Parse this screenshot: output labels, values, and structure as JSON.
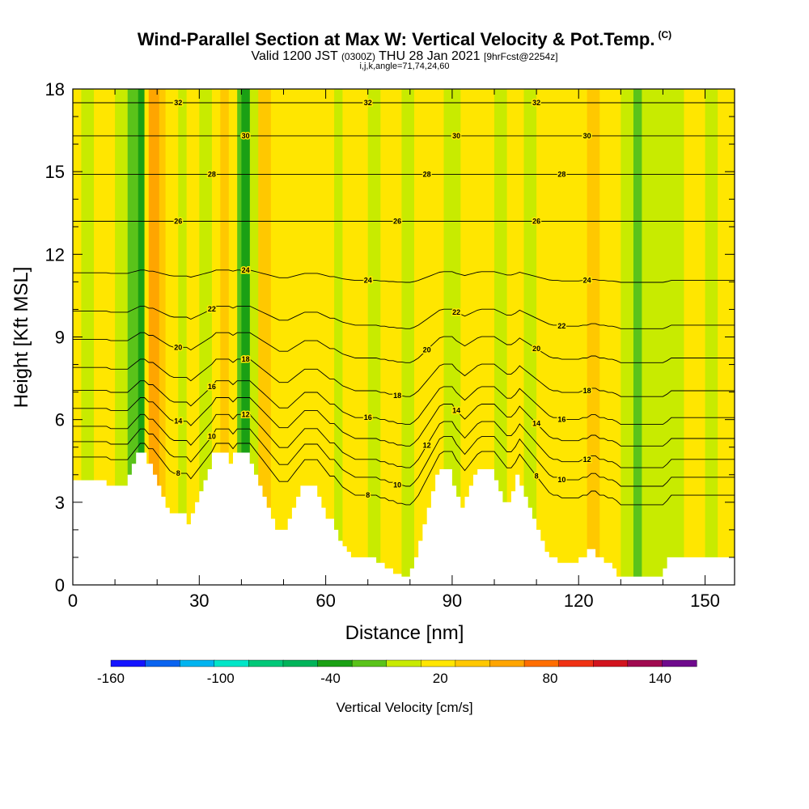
{
  "header": {
    "title": "Wind-Parallel Section at Max W: Vertical Velocity & Pot.Temp.",
    "title_mark": "(C)",
    "subtitle_valid": "Valid 1200 JST",
    "subtitle_utc": "(0300Z)",
    "subtitle_date": "THU 28 Jan 2021",
    "subtitle_fcst": "[9hrFcst@2254z]",
    "params": "i,j,k,angle=71,74,24,60"
  },
  "chart_data": {
    "type": "heatmap",
    "xlabel": "Distance [nm]",
    "ylabel": "Height [Kft MSL]",
    "xlim": [
      0,
      157
    ],
    "ylim": [
      0,
      18
    ],
    "x_ticks": [
      "0",
      "30",
      "60",
      "90",
      "120",
      "150"
    ],
    "x_tick_values": [
      0,
      30,
      60,
      90,
      120,
      150
    ],
    "y_ticks": [
      "0",
      "3",
      "6",
      "9",
      "12",
      "15",
      "18"
    ],
    "y_tick_values": [
      0,
      3,
      6,
      9,
      12,
      15,
      18
    ],
    "grid": false,
    "terrain_profile": [
      [
        0,
        3.8
      ],
      [
        8,
        3.8
      ],
      [
        8,
        3.6
      ],
      [
        13,
        3.6
      ],
      [
        13,
        4.0
      ],
      [
        14,
        4.0
      ],
      [
        14,
        4.4
      ],
      [
        15,
        4.4
      ],
      [
        15,
        4.8
      ],
      [
        17.5,
        4.8
      ],
      [
        17.5,
        4.4
      ],
      [
        19,
        4.4
      ],
      [
        19,
        4.0
      ],
      [
        20,
        4.0
      ],
      [
        20,
        3.6
      ],
      [
        21,
        3.6
      ],
      [
        21,
        3.2
      ],
      [
        22,
        3.2
      ],
      [
        22,
        2.8
      ],
      [
        23,
        2.8
      ],
      [
        23,
        2.6
      ],
      [
        27,
        2.6
      ],
      [
        27,
        2.2
      ],
      [
        28,
        2.2
      ],
      [
        28,
        2.6
      ],
      [
        29,
        2.6
      ],
      [
        29,
        3.0
      ],
      [
        30,
        3.0
      ],
      [
        30,
        3.4
      ],
      [
        31,
        3.4
      ],
      [
        31,
        3.8
      ],
      [
        32,
        3.8
      ],
      [
        32,
        4.2
      ],
      [
        33,
        4.2
      ],
      [
        33,
        4.8
      ],
      [
        37,
        4.8
      ],
      [
        37,
        4.4
      ],
      [
        38,
        4.4
      ],
      [
        38,
        4.8
      ],
      [
        42,
        4.8
      ],
      [
        42,
        4.4
      ],
      [
        43,
        4.4
      ],
      [
        43,
        4.0
      ],
      [
        44,
        4.0
      ],
      [
        44,
        3.6
      ],
      [
        45,
        3.6
      ],
      [
        45,
        3.2
      ],
      [
        46,
        3.2
      ],
      [
        46,
        2.8
      ],
      [
        47,
        2.8
      ],
      [
        47,
        2.4
      ],
      [
        48,
        2.4
      ],
      [
        48,
        2.0
      ],
      [
        51,
        2.0
      ],
      [
        51,
        2.4
      ],
      [
        52,
        2.4
      ],
      [
        52,
        2.8
      ],
      [
        53,
        2.8
      ],
      [
        53,
        3.2
      ],
      [
        54,
        3.2
      ],
      [
        54,
        3.6
      ],
      [
        58,
        3.6
      ],
      [
        58,
        3.2
      ],
      [
        59,
        3.2
      ],
      [
        59,
        2.8
      ],
      [
        60,
        2.8
      ],
      [
        60,
        2.4
      ],
      [
        62,
        2.4
      ],
      [
        62,
        2.0
      ],
      [
        63,
        2.0
      ],
      [
        63,
        1.6
      ],
      [
        64,
        1.6
      ],
      [
        64,
        1.4
      ],
      [
        65,
        1.4
      ],
      [
        65,
        1.2
      ],
      [
        66,
        1.2
      ],
      [
        66,
        1.0
      ],
      [
        72,
        1.0
      ],
      [
        72,
        0.8
      ],
      [
        74,
        0.8
      ],
      [
        74,
        0.6
      ],
      [
        76,
        0.6
      ],
      [
        76,
        0.4
      ],
      [
        78,
        0.4
      ],
      [
        78,
        0.3
      ],
      [
        80,
        0.3
      ],
      [
        80,
        0.6
      ],
      [
        81,
        0.6
      ],
      [
        81,
        1.0
      ],
      [
        82,
        1.0
      ],
      [
        82,
        1.6
      ],
      [
        83,
        1.6
      ],
      [
        83,
        2.2
      ],
      [
        84,
        2.2
      ],
      [
        84,
        2.8
      ],
      [
        85,
        2.8
      ],
      [
        85,
        3.4
      ],
      [
        86,
        3.4
      ],
      [
        86,
        4.0
      ],
      [
        87,
        4.0
      ],
      [
        87,
        4.2
      ],
      [
        90,
        4.2
      ],
      [
        90,
        3.6
      ],
      [
        91,
        3.6
      ],
      [
        91,
        3.2
      ],
      [
        92,
        3.2
      ],
      [
        92,
        2.8
      ],
      [
        93,
        2.8
      ],
      [
        93,
        3.2
      ],
      [
        94,
        3.2
      ],
      [
        94,
        3.6
      ],
      [
        95,
        3.6
      ],
      [
        95,
        4.0
      ],
      [
        96,
        4.0
      ],
      [
        96,
        4.2
      ],
      [
        100,
        4.2
      ],
      [
        100,
        3.8
      ],
      [
        101,
        3.8
      ],
      [
        101,
        3.4
      ],
      [
        102,
        3.4
      ],
      [
        102,
        3.0
      ],
      [
        104,
        3.0
      ],
      [
        104,
        3.4
      ],
      [
        105,
        3.4
      ],
      [
        105,
        4.0
      ],
      [
        106,
        4.0
      ],
      [
        106,
        3.6
      ],
      [
        107,
        3.6
      ],
      [
        107,
        3.2
      ],
      [
        108,
        3.2
      ],
      [
        108,
        2.8
      ],
      [
        109,
        2.8
      ],
      [
        109,
        2.4
      ],
      [
        110,
        2.4
      ],
      [
        110,
        2.0
      ],
      [
        111,
        2.0
      ],
      [
        111,
        1.6
      ],
      [
        112,
        1.6
      ],
      [
        112,
        1.2
      ],
      [
        113,
        1.2
      ],
      [
        113,
        1.0
      ],
      [
        115,
        1.0
      ],
      [
        115,
        0.8
      ],
      [
        120,
        0.8
      ],
      [
        120,
        1.0
      ],
      [
        122,
        1.0
      ],
      [
        122,
        1.3
      ],
      [
        124,
        1.3
      ],
      [
        124,
        1.0
      ],
      [
        126,
        1.0
      ],
      [
        126,
        0.8
      ],
      [
        128,
        0.8
      ],
      [
        128,
        0.6
      ],
      [
        129,
        0.6
      ],
      [
        129,
        0.3
      ],
      [
        140,
        0.3
      ],
      [
        140,
        0.6
      ],
      [
        141,
        0.6
      ],
      [
        141,
        1.0
      ],
      [
        157,
        1.0
      ]
    ],
    "velocity_bands": [
      {
        "x": [
          0,
          2
        ],
        "w": 20
      },
      {
        "x": [
          2,
          5
        ],
        "w": 0
      },
      {
        "x": [
          5,
          10
        ],
        "w": 20
      },
      {
        "x": [
          10,
          13
        ],
        "w": 0
      },
      {
        "x": [
          13,
          15.5
        ],
        "w": -20
      },
      {
        "x": [
          15.5,
          17
        ],
        "w": -40
      },
      {
        "x": [
          17,
          18
        ],
        "w": 20
      },
      {
        "x": [
          18,
          20.5
        ],
        "w": 60
      },
      {
        "x": [
          20.5,
          22
        ],
        "w": 40
      },
      {
        "x": [
          22,
          25
        ],
        "w": 20
      },
      {
        "x": [
          25,
          27
        ],
        "w": 0
      },
      {
        "x": [
          27,
          30
        ],
        "w": 20
      },
      {
        "x": [
          30,
          33
        ],
        "w": 0
      },
      {
        "x": [
          33,
          35
        ],
        "w": 20
      },
      {
        "x": [
          35,
          37
        ],
        "w": 40
      },
      {
        "x": [
          37,
          39
        ],
        "w": 20
      },
      {
        "x": [
          39,
          40
        ],
        "w": -20
      },
      {
        "x": [
          40,
          42
        ],
        "w": -40
      },
      {
        "x": [
          42,
          44
        ],
        "w": 0
      },
      {
        "x": [
          44,
          47
        ],
        "w": 40
      },
      {
        "x": [
          47,
          50
        ],
        "w": 20
      },
      {
        "x": [
          50,
          56
        ],
        "w": 20
      },
      {
        "x": [
          56,
          62
        ],
        "w": 20
      },
      {
        "x": [
          62,
          64
        ],
        "w": 0
      },
      {
        "x": [
          64,
          70
        ],
        "w": 20
      },
      {
        "x": [
          70,
          73
        ],
        "w": 0
      },
      {
        "x": [
          73,
          78
        ],
        "w": 20
      },
      {
        "x": [
          78,
          81
        ],
        "w": 0
      },
      {
        "x": [
          81,
          88
        ],
        "w": 20
      },
      {
        "x": [
          88,
          92
        ],
        "w": 0
      },
      {
        "x": [
          92,
          100
        ],
        "w": 20
      },
      {
        "x": [
          100,
          103
        ],
        "w": 0
      },
      {
        "x": [
          103,
          107
        ],
        "w": 20
      },
      {
        "x": [
          107,
          110
        ],
        "w": 0
      },
      {
        "x": [
          110,
          122
        ],
        "w": 20
      },
      {
        "x": [
          122,
          125
        ],
        "w": 40
      },
      {
        "x": [
          125,
          130
        ],
        "w": 20
      },
      {
        "x": [
          130,
          133
        ],
        "w": 0
      },
      {
        "x": [
          133,
          135
        ],
        "w": -20
      },
      {
        "x": [
          135,
          145
        ],
        "w": 0
      },
      {
        "x": [
          145,
          150
        ],
        "w": 20
      },
      {
        "x": [
          150,
          153
        ],
        "w": 0
      },
      {
        "x": [
          153,
          157
        ],
        "w": 20
      }
    ],
    "theta_contours": [
      {
        "value": 8,
        "base_height": 4.0
      },
      {
        "value": 10,
        "base_height": 4.6
      },
      {
        "value": 12,
        "base_height": 5.2
      },
      {
        "value": 14,
        "base_height": 5.9
      },
      {
        "value": 16,
        "base_height": 6.6
      },
      {
        "value": 18,
        "base_height": 7.5
      },
      {
        "value": 20,
        "base_height": 8.6
      },
      {
        "value": 22,
        "base_height": 9.7
      },
      {
        "value": 24,
        "base_height": 11.2
      },
      {
        "value": 26,
        "base_height": 13.2
      },
      {
        "value": 28,
        "base_height": 14.9
      },
      {
        "value": 30,
        "base_height": 16.3
      },
      {
        "value": 32,
        "base_height": 17.5
      }
    ],
    "colorbar": {
      "label": "Vertical Velocity [cm/s]",
      "tick_labels": [
        "-160",
        "-100",
        "-40",
        "20",
        "80",
        "140"
      ],
      "tick_values": [
        -160,
        -100,
        -40,
        20,
        80,
        140
      ],
      "bins": [
        -160,
        -140,
        -120,
        -100,
        -80,
        -60,
        -40,
        -20,
        0,
        20,
        40,
        60,
        80,
        100,
        120,
        140,
        160
      ],
      "colors": [
        "#1414ff",
        "#0a64f0",
        "#00b4f0",
        "#00e6c8",
        "#00c878",
        "#00b45a",
        "#1aa014",
        "#5ac31a",
        "#c8eb00",
        "#ffe600",
        "#ffc800",
        "#ffa500",
        "#ff6e00",
        "#f03214",
        "#d2141e",
        "#a00a50",
        "#6e0a8c"
      ]
    }
  }
}
